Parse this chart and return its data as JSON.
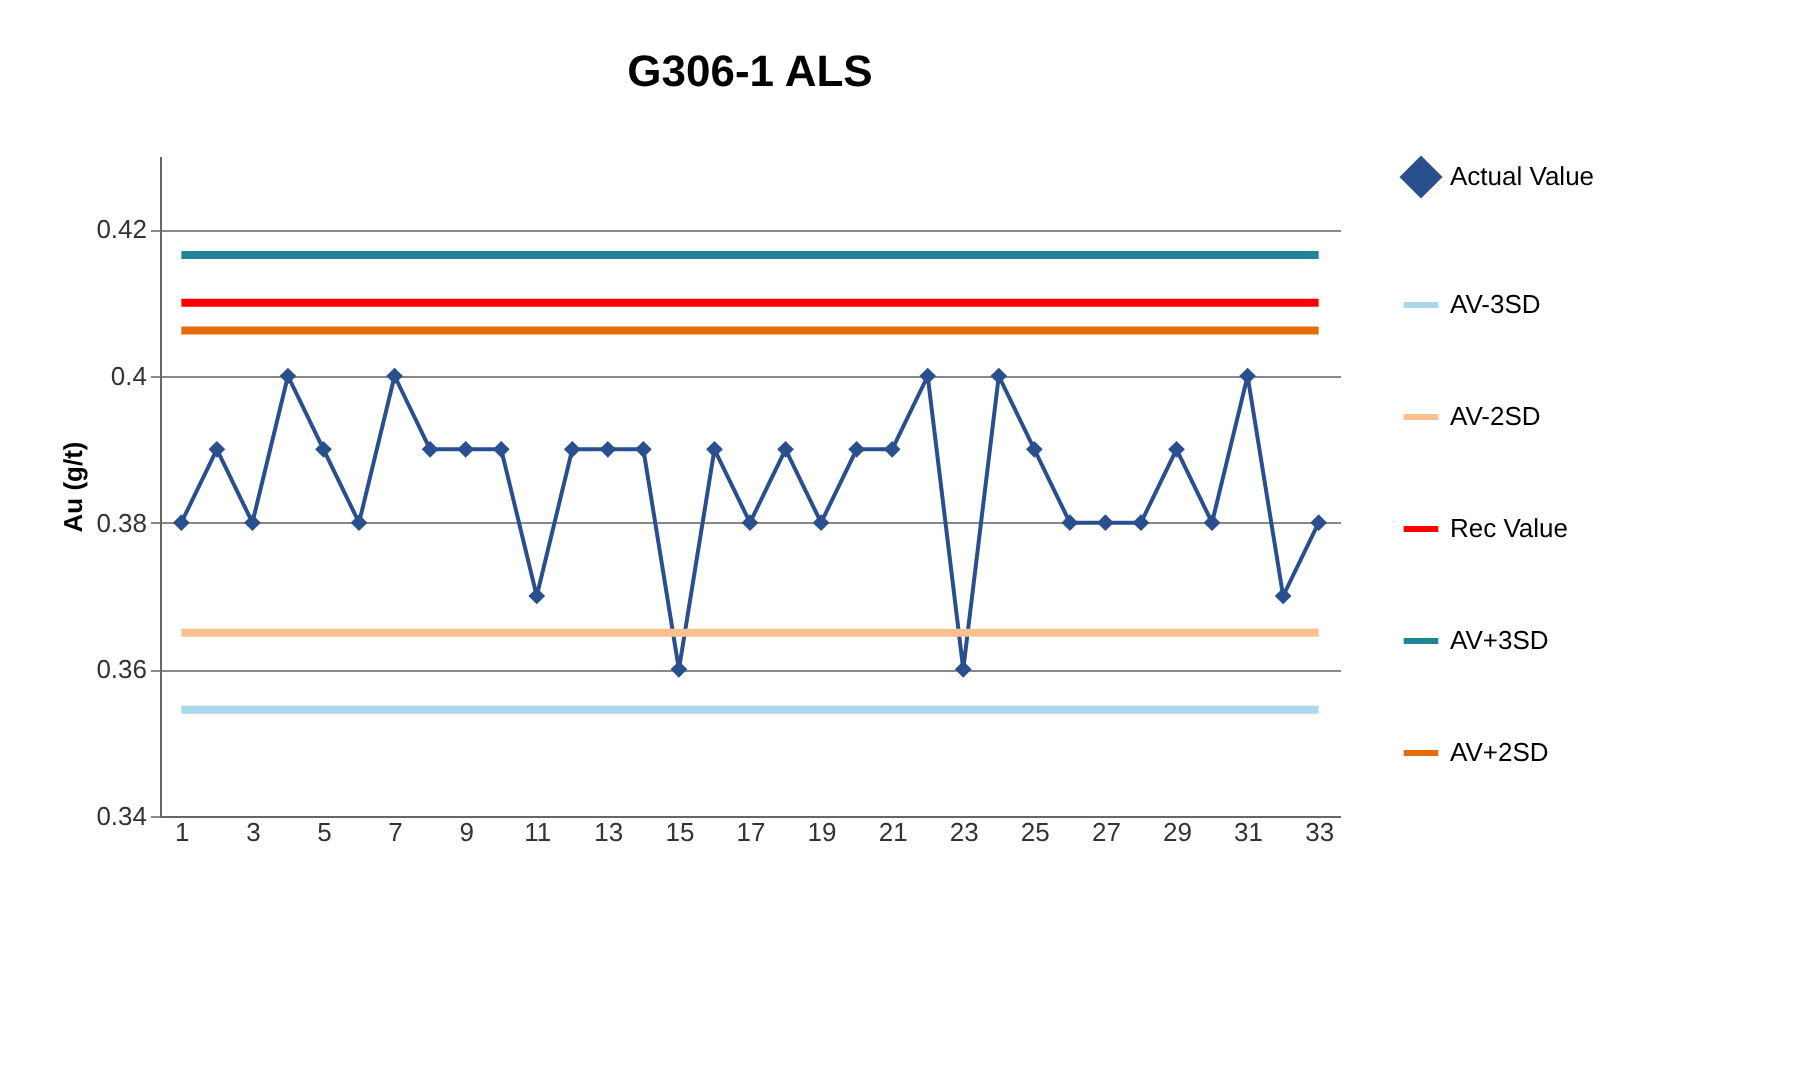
{
  "chart_data": {
    "type": "line",
    "title": "G306-1 ALS",
    "ylabel": "Au (g/t)",
    "xlim": [
      0.4,
      33.6
    ],
    "xticks": [
      1,
      3,
      5,
      7,
      9,
      11,
      13,
      15,
      17,
      19,
      21,
      23,
      25,
      27,
      29,
      31,
      33
    ],
    "ylim": [
      0.34,
      0.43
    ],
    "yticks": [
      0.34,
      0.36,
      0.38,
      0.4,
      0.42
    ],
    "grid": "y",
    "legend": "right",
    "series": [
      {
        "name": "Actual Value",
        "color": "#2a4f8f",
        "marker": "diamond",
        "x": [
          1,
          2,
          3,
          4,
          5,
          6,
          7,
          8,
          9,
          10,
          11,
          12,
          13,
          14,
          15,
          16,
          17,
          18,
          19,
          20,
          21,
          22,
          23,
          24,
          25,
          26,
          27,
          28,
          29,
          30,
          31,
          32,
          33
        ],
        "values": [
          0.38,
          0.39,
          0.38,
          0.4,
          0.39,
          0.38,
          0.4,
          0.39,
          0.39,
          0.39,
          0.37,
          0.39,
          0.39,
          0.39,
          0.36,
          0.39,
          0.38,
          0.39,
          0.38,
          0.39,
          0.39,
          0.4,
          0.36,
          0.4,
          0.39,
          0.38,
          0.38,
          0.38,
          0.39,
          0.38,
          0.4,
          0.37,
          0.38
        ]
      },
      {
        "name": "AV-3SD",
        "color": "#a9d8e8",
        "marker": "none",
        "x": [
          1,
          33
        ],
        "values": [
          0.3545,
          0.3545
        ]
      },
      {
        "name": "AV-2SD",
        "color": "#fac090",
        "marker": "none",
        "x": [
          1,
          33
        ],
        "values": [
          0.365,
          0.365
        ]
      },
      {
        "name": "Rec Value",
        "color": "#ff0000",
        "marker": "none",
        "x": [
          1,
          33
        ],
        "values": [
          0.41,
          0.41
        ]
      },
      {
        "name": "AV+3SD",
        "color": "#1f8496",
        "marker": "none",
        "x": [
          1,
          33
        ],
        "values": [
          0.4165,
          0.4165
        ]
      },
      {
        "name": "AV+2SD",
        "color": "#e46c0a",
        "marker": "none",
        "x": [
          1,
          33
        ],
        "values": [
          0.4062,
          0.4062
        ]
      }
    ]
  }
}
